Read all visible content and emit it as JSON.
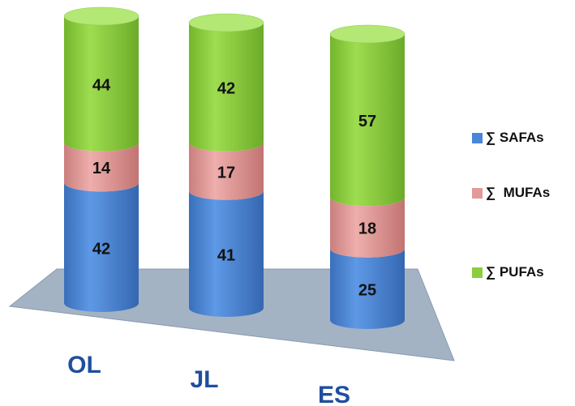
{
  "chart_data": {
    "type": "bar",
    "stacked": true,
    "style": "3d-cylinder",
    "categories": [
      "OL",
      "JL",
      "ES"
    ],
    "series": [
      {
        "name": "∑ SAFAs",
        "values": [
          42,
          41,
          25
        ],
        "color": "#4a86d8"
      },
      {
        "name": "∑  MUFAs",
        "values": [
          14,
          17,
          18
        ],
        "color": "#e29a98"
      },
      {
        "name": "∑ PUFAs",
        "values": [
          44,
          42,
          57
        ],
        "color": "#8ccd3e"
      }
    ],
    "legend_position": "right",
    "category_label_color": "#1f4e9e",
    "floor_color": "#a3b3c4"
  }
}
